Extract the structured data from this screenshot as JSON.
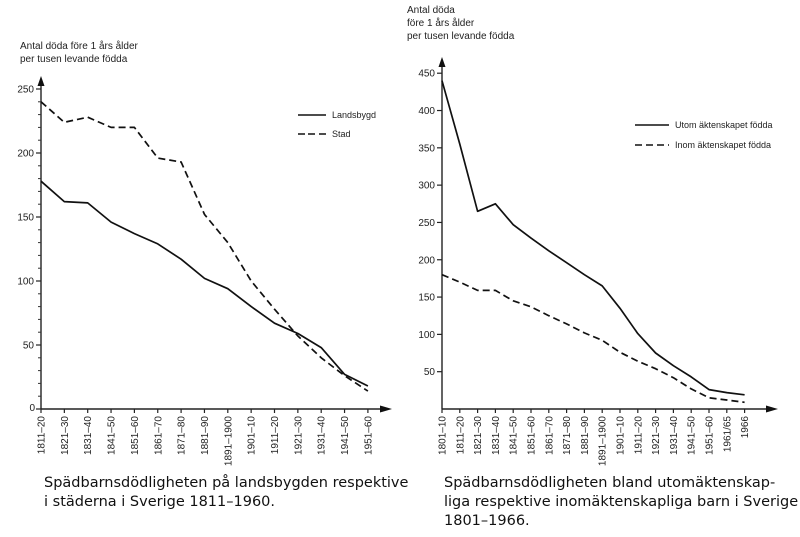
{
  "chart_data": [
    {
      "type": "line",
      "title": "",
      "ylabel": "Antal döda före 1 års ålder per tusen levande födda",
      "ylabel_lines": [
        "Antal döda före 1 års ålder",
        "per tusen levande födda"
      ],
      "xlabel": "",
      "ylim": [
        0,
        250
      ],
      "yticks": [
        0,
        50,
        100,
        150,
        200,
        250
      ],
      "categories": [
        "1811–20",
        "1821–30",
        "1831–40",
        "1841–50",
        "1851–60",
        "1861–70",
        "1871–80",
        "1881–90",
        "1891–1900",
        "1901–10",
        "1911–20",
        "1921–30",
        "1931–40",
        "1941–50",
        "1951–60"
      ],
      "series": [
        {
          "name": "Landsbygd",
          "style": "solid",
          "values": [
            178,
            162,
            161,
            146,
            137,
            129,
            117,
            102,
            94,
            80,
            67,
            59,
            48,
            27,
            18
          ]
        },
        {
          "name": "Stad",
          "style": "dashed",
          "values": [
            240,
            224,
            228,
            220,
            220,
            196,
            193,
            152,
            130,
            100,
            78,
            57,
            40,
            26,
            14
          ]
        }
      ],
      "legend_position": "top-right",
      "grid": false,
      "caption": [
        "Spädbarnsdödligheten på landsbygden respektive",
        "i städerna i Sverige 1811–1960."
      ]
    },
    {
      "type": "line",
      "title": "",
      "ylabel": "Antal döda före 1 års ålder per tusen levande födda",
      "ylabel_lines": [
        "Antal döda",
        "före 1 års ålder",
        "per tusen levande födda"
      ],
      "xlabel": "",
      "ylim": [
        0,
        450
      ],
      "yticks": [
        50,
        100,
        150,
        200,
        250,
        300,
        350,
        400,
        450
      ],
      "categories": [
        "1801–10",
        "1811–20",
        "1821–30",
        "1831–40",
        "1841–50",
        "1851–60",
        "1861–70",
        "1871–80",
        "1881–90",
        "1891–1900",
        "1901–10",
        "1911–20",
        "1921–30",
        "1931–40",
        "1941–50",
        "1951–60",
        "1961/65",
        "1966"
      ],
      "series": [
        {
          "name": "Utom äktenskapet födda",
          "style": "solid",
          "values": [
            440,
            355,
            265,
            275,
            247,
            229,
            212,
            196,
            180,
            165,
            135,
            101,
            75,
            58,
            43,
            26,
            22,
            19
          ]
        },
        {
          "name": "Inom äktenskapet födda",
          "style": "dashed",
          "values": [
            180,
            170,
            159,
            159,
            145,
            137,
            125,
            114,
            102,
            92,
            76,
            64,
            54,
            42,
            27,
            15,
            12,
            9
          ]
        }
      ],
      "legend_position": "top-right",
      "grid": false,
      "caption": [
        "Spädbarnsdödligheten bland utomäktenskap-",
        "liga respektive inomäktenskapliga barn i Sverige",
        "1801–1966."
      ]
    }
  ]
}
